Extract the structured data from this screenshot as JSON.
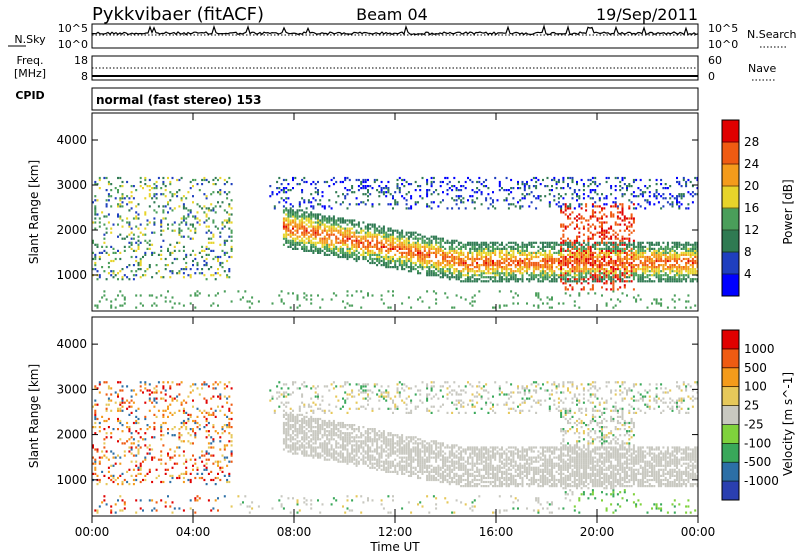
{
  "header": {
    "station": "Pykkvibaer (fitACF)",
    "beam": "Beam 04",
    "date": "19/Sep/2011"
  },
  "noise_panel": {
    "left_label": "N.Sky",
    "right_label": "N.Search",
    "left_ticks": [
      "10^5",
      "10^0"
    ],
    "right_ticks": [
      "10^5",
      "10^0"
    ]
  },
  "freq_panel": {
    "left_label_1": "Freq.",
    "left_label_2": "[MHz]",
    "left_ticks": [
      "18",
      "8"
    ],
    "right_label": "Nave",
    "right_ticks": [
      "60",
      "0"
    ]
  },
  "cpid": {
    "label": "CPID",
    "text": "normal (fast stereo) 153"
  },
  "chart_data": [
    {
      "type": "heatmap",
      "name": "power",
      "ylabel": "Slant Range [km]",
      "xlabel": "",
      "ylim": [
        200,
        4600
      ],
      "yticks": [
        1000,
        2000,
        3000,
        4000
      ],
      "xlim": [
        0,
        24
      ],
      "colorbar": {
        "label": "Power [dB]",
        "ticks": [
          "28",
          "24",
          "20",
          "16",
          "12",
          "8",
          "4"
        ],
        "colors": [
          "#0000ff",
          "#1f3fbf",
          "#2f7a52",
          "#4a9e5a",
          "#e7d42a",
          "#f49b1b",
          "#ef5b12",
          "#e00000"
        ]
      }
    },
    {
      "type": "heatmap",
      "name": "velocity",
      "ylabel": "Slant Range [km]",
      "xlabel": "Time UT",
      "ylim": [
        200,
        4600
      ],
      "yticks": [
        1000,
        2000,
        3000,
        4000
      ],
      "xlim": [
        0,
        24
      ],
      "xticks": [
        "00:00",
        "04:00",
        "08:00",
        "12:00",
        "16:00",
        "20:00",
        "00:00"
      ],
      "colorbar": {
        "label": "Velocity [m s^-1]",
        "ticks": [
          "1000",
          "500",
          "100",
          "25",
          "-25",
          "-100",
          "-500",
          "-1000"
        ],
        "colors": [
          "#2a3fb0",
          "#2c6fa6",
          "#39a85a",
          "#7fd23c",
          "#c8c8c0",
          "#e6c85a",
          "#f49b1b",
          "#ef5b12",
          "#e00000"
        ]
      }
    }
  ]
}
